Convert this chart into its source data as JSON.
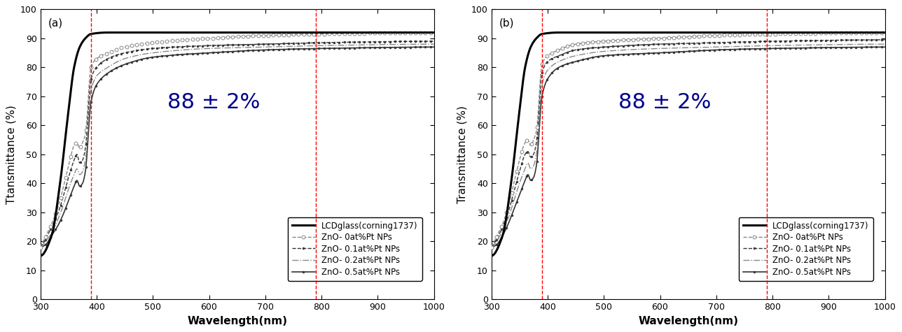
{
  "panel_labels": [
    "(a)",
    "(b)"
  ],
  "xlabel": "Wavelength(nm)",
  "ylabel_a": "Ttansmittance (%)",
  "ylabel_b": "Transmittance (%)",
  "xlim": [
    300,
    1000
  ],
  "ylim": [
    0,
    100
  ],
  "xticks": [
    300,
    400,
    500,
    600,
    700,
    800,
    900,
    1000
  ],
  "yticks": [
    0,
    10,
    20,
    30,
    40,
    50,
    60,
    70,
    80,
    90,
    100
  ],
  "vlines": [
    390,
    790
  ],
  "annotation": "88 ± 2%",
  "annotation_color": "#00008B",
  "annotation_fontsize": 22,
  "legend_entries": [
    "LCDglass(corning1737)",
    "ZnO- 0at%Pt NPs",
    "ZnO- 0.1at%Pt NPs",
    "ZnO- 0.2at%Pt NPs",
    "ZnO- 0.5at%Pt NPs"
  ],
  "background_color": "#ffffff",
  "tick_fontsize": 9,
  "label_fontsize": 11,
  "legend_fontsize": 8.5
}
